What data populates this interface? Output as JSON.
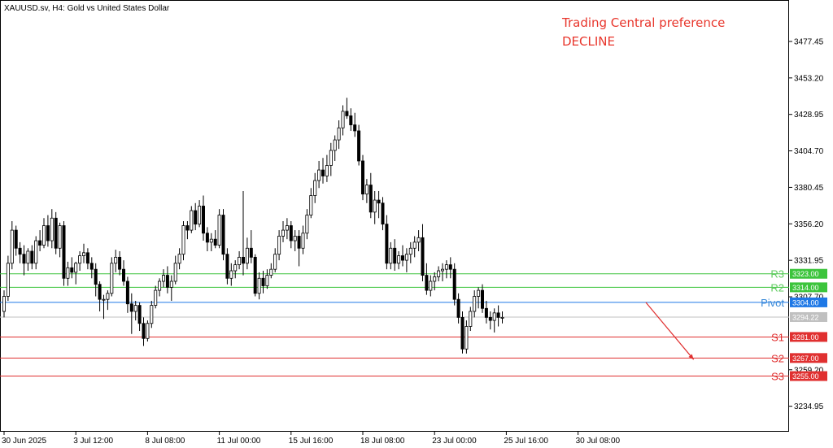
{
  "header": {
    "title": "XAUUSD.sv, H4:  Gold vs United States Dollar"
  },
  "preference": {
    "line1": "Trading Central preference",
    "line2": "DECLINE"
  },
  "chart_data": {
    "type": "candlestick",
    "symbol": "XAUUSD.sv",
    "timeframe": "H4",
    "ylim": [
      3218.0,
      3505.0
    ],
    "y_ticks": [
      {
        "value": 3477.45,
        "label": "3477.45"
      },
      {
        "value": 3453.2,
        "label": "3453.20"
      },
      {
        "value": 3428.95,
        "label": "3428.95"
      },
      {
        "value": 3404.7,
        "label": "3404.70"
      },
      {
        "value": 3380.45,
        "label": "3380.45"
      },
      {
        "value": 3356.2,
        "label": "3356.20"
      },
      {
        "value": 3331.95,
        "label": "3331.95"
      },
      {
        "value": 3307.7,
        "label": "3307.70"
      },
      {
        "value": 3259.2,
        "label": "3259.20"
      },
      {
        "value": 3234.95,
        "label": "3234.95"
      }
    ],
    "x_ticks": [
      {
        "bar": 0,
        "label": "30 Jun 2025"
      },
      {
        "bar": 18,
        "label": "3 Jul 12:00"
      },
      {
        "bar": 36,
        "label": "8 Jul 08:00"
      },
      {
        "bar": 54,
        "label": "11 Jul 00:00"
      },
      {
        "bar": 72,
        "label": "15 Jul 16:00"
      },
      {
        "bar": 90,
        "label": "18 Jul 08:00"
      },
      {
        "bar": 108,
        "label": "23 Jul 00:00"
      },
      {
        "bar": 126,
        "label": "25 Jul 16:00"
      },
      {
        "bar": 144,
        "label": "30 Jul 08:00"
      }
    ],
    "current_price": {
      "value": 3294.22,
      "label": "3294.22",
      "color": "#c0c0c0"
    },
    "levels": [
      {
        "name": "R3",
        "value": 3323.0,
        "label": "3323.00",
        "color": "#3cc43c",
        "text_color": "#5ecb5e"
      },
      {
        "name": "R2",
        "value": 3314.0,
        "label": "3314.00",
        "color": "#3cc43c",
        "text_color": "#5ecb5e"
      },
      {
        "name": "Pivot",
        "value": 3304.0,
        "label": "3304.00",
        "color": "#1e78e6",
        "text_color": "#3a8ad8"
      },
      {
        "name": "S1",
        "value": 3281.0,
        "label": "3281.00",
        "color": "#e03030",
        "text_color": "#e03030"
      },
      {
        "name": "S2",
        "value": 3267.0,
        "label": "3267.00",
        "color": "#e03030",
        "text_color": "#e03030"
      },
      {
        "name": "S3",
        "value": 3255.0,
        "label": "3255.00",
        "color": "#e03030",
        "text_color": "#e03030"
      }
    ],
    "forecast_arrow": {
      "from": {
        "bar": 161,
        "value": 3304.0
      },
      "to": {
        "bar": 173,
        "value": 3266.0
      },
      "color": "#e03030"
    },
    "candles": [
      [
        3298,
        3312,
        3294,
        3308
      ],
      [
        3308,
        3335,
        3305,
        3330
      ],
      [
        3330,
        3358,
        3326,
        3352
      ],
      [
        3352,
        3355,
        3335,
        3340
      ],
      [
        3340,
        3344,
        3330,
        3336
      ],
      [
        3336,
        3342,
        3322,
        3330
      ],
      [
        3330,
        3340,
        3325,
        3338
      ],
      [
        3338,
        3342,
        3326,
        3330
      ],
      [
        3330,
        3348,
        3326,
        3345
      ],
      [
        3345,
        3352,
        3338,
        3342
      ],
      [
        3342,
        3360,
        3340,
        3355
      ],
      [
        3355,
        3362,
        3341,
        3345
      ],
      [
        3345,
        3366,
        3340,
        3360
      ],
      [
        3360,
        3364,
        3336,
        3340
      ],
      [
        3340,
        3357,
        3334,
        3355
      ],
      [
        3355,
        3358,
        3315,
        3320
      ],
      [
        3320,
        3331,
        3315,
        3327
      ],
      [
        3327,
        3334,
        3320,
        3324
      ],
      [
        3324,
        3331,
        3316,
        3330
      ],
      [
        3330,
        3338,
        3325,
        3335
      ],
      [
        3335,
        3343,
        3330,
        3337
      ],
      [
        3337,
        3340,
        3326,
        3330
      ],
      [
        3330,
        3334,
        3320,
        3326
      ],
      [
        3326,
        3330,
        3308,
        3316
      ],
      [
        3316,
        3318,
        3298,
        3306
      ],
      [
        3306,
        3309,
        3293,
        3306
      ],
      [
        3306,
        3312,
        3299,
        3310
      ],
      [
        3310,
        3334,
        3308,
        3330
      ],
      [
        3330,
        3339,
        3324,
        3334
      ],
      [
        3334,
        3338,
        3322,
        3326
      ],
      [
        3326,
        3332,
        3315,
        3318
      ],
      [
        3318,
        3321,
        3297,
        3303
      ],
      [
        3303,
        3310,
        3283,
        3298
      ],
      [
        3298,
        3305,
        3292,
        3302
      ],
      [
        3302,
        3304,
        3285,
        3290
      ],
      [
        3290,
        3294,
        3275,
        3280
      ],
      [
        3280,
        3292,
        3278,
        3290
      ],
      [
        3290,
        3305,
        3287,
        3302
      ],
      [
        3302,
        3315,
        3300,
        3312
      ],
      [
        3312,
        3320,
        3308,
        3318
      ],
      [
        3318,
        3326,
        3314,
        3322
      ],
      [
        3322,
        3328,
        3310,
        3314
      ],
      [
        3314,
        3322,
        3305,
        3318
      ],
      [
        3318,
        3335,
        3316,
        3330
      ],
      [
        3330,
        3340,
        3326,
        3336
      ],
      [
        3336,
        3358,
        3332,
        3355
      ],
      [
        3355,
        3358,
        3346,
        3352
      ],
      [
        3352,
        3368,
        3350,
        3365
      ],
      [
        3365,
        3370,
        3352,
        3356
      ],
      [
        3356,
        3372,
        3354,
        3368
      ],
      [
        3368,
        3375,
        3345,
        3350
      ],
      [
        3350,
        3354,
        3338,
        3344
      ],
      [
        3344,
        3350,
        3338,
        3346
      ],
      [
        3346,
        3352,
        3340,
        3342
      ],
      [
        3342,
        3366,
        3340,
        3362
      ],
      [
        3362,
        3366,
        3332,
        3336
      ],
      [
        3336,
        3340,
        3316,
        3320
      ],
      [
        3320,
        3330,
        3315,
        3325
      ],
      [
        3325,
        3332,
        3320,
        3329
      ],
      [
        3329,
        3338,
        3326,
        3334
      ],
      [
        3334,
        3378,
        3322,
        3330
      ],
      [
        3330,
        3347,
        3326,
        3340
      ],
      [
        3340,
        3352,
        3330,
        3334
      ],
      [
        3334,
        3336,
        3308,
        3310
      ],
      [
        3310,
        3324,
        3306,
        3320
      ],
      [
        3320,
        3325,
        3310,
        3315
      ],
      [
        3315,
        3326,
        3313,
        3322
      ],
      [
        3322,
        3330,
        3320,
        3326
      ],
      [
        3326,
        3340,
        3324,
        3336
      ],
      [
        3336,
        3352,
        3332,
        3348
      ],
      [
        3348,
        3358,
        3344,
        3352
      ],
      [
        3352,
        3360,
        3346,
        3355
      ],
      [
        3355,
        3358,
        3340,
        3345
      ],
      [
        3345,
        3352,
        3338,
        3348
      ],
      [
        3348,
        3352,
        3328,
        3340
      ],
      [
        3340,
        3355,
        3336,
        3350
      ],
      [
        3350,
        3366,
        3346,
        3362
      ],
      [
        3362,
        3380,
        3360,
        3375
      ],
      [
        3375,
        3390,
        3370,
        3385
      ],
      [
        3385,
        3398,
        3380,
        3392
      ],
      [
        3392,
        3400,
        3383,
        3388
      ],
      [
        3388,
        3402,
        3384,
        3395
      ],
      [
        3395,
        3410,
        3388,
        3405
      ],
      [
        3405,
        3415,
        3398,
        3412
      ],
      [
        3412,
        3425,
        3406,
        3420
      ],
      [
        3420,
        3435,
        3415,
        3431
      ],
      [
        3431,
        3440,
        3426,
        3428
      ],
      [
        3428,
        3433,
        3418,
        3422
      ],
      [
        3422,
        3430,
        3414,
        3418
      ],
      [
        3418,
        3422,
        3395,
        3398
      ],
      [
        3398,
        3402,
        3372,
        3376
      ],
      [
        3376,
        3386,
        3370,
        3382
      ],
      [
        3382,
        3390,
        3360,
        3364
      ],
      [
        3364,
        3378,
        3356,
        3372
      ],
      [
        3372,
        3378,
        3360,
        3370
      ],
      [
        3370,
        3374,
        3352,
        3356
      ],
      [
        3356,
        3362,
        3326,
        3330
      ],
      [
        3330,
        3344,
        3326,
        3340
      ],
      [
        3340,
        3346,
        3325,
        3330
      ],
      [
        3330,
        3338,
        3326,
        3335
      ],
      [
        3335,
        3342,
        3328,
        3332
      ],
      [
        3332,
        3340,
        3324,
        3336
      ],
      [
        3336,
        3344,
        3330,
        3340
      ],
      [
        3340,
        3348,
        3334,
        3344
      ],
      [
        3344,
        3352,
        3338,
        3347
      ],
      [
        3347,
        3356,
        3318,
        3322
      ],
      [
        3322,
        3330,
        3309,
        3312
      ],
      [
        3312,
        3322,
        3308,
        3318
      ],
      [
        3318,
        3324,
        3312,
        3321
      ],
      [
        3321,
        3328,
        3318,
        3325
      ],
      [
        3325,
        3330,
        3318,
        3326
      ],
      [
        3326,
        3332,
        3320,
        3329
      ],
      [
        3329,
        3334,
        3320,
        3326
      ],
      [
        3326,
        3330,
        3302,
        3306
      ],
      [
        3306,
        3310,
        3290,
        3294
      ],
      [
        3294,
        3298,
        3270,
        3273
      ],
      [
        3273,
        3292,
        3270,
        3288
      ],
      [
        3288,
        3301,
        3285,
        3298
      ],
      [
        3298,
        3312,
        3294,
        3308
      ],
      [
        3308,
        3314,
        3300,
        3312
      ],
      [
        3312,
        3316,
        3297,
        3300
      ],
      [
        3300,
        3305,
        3290,
        3294
      ],
      [
        3294,
        3298,
        3286,
        3292
      ],
      [
        3292,
        3300,
        3284,
        3297
      ],
      [
        3297,
        3302,
        3288,
        3294
      ],
      [
        3294,
        3298,
        3290,
        3294
      ]
    ]
  }
}
